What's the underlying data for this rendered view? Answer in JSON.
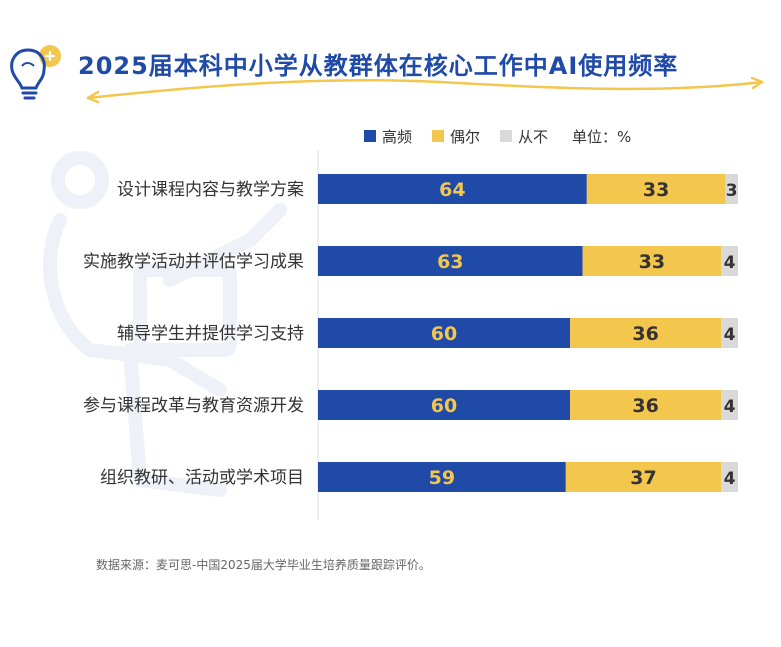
{
  "title": "2025届本科中小学从教群体在核心工作中AI使用频率",
  "legend": {
    "unit_label": "单位：%"
  },
  "colors": {
    "high": "#1f4aa8",
    "occasional": "#f3c64d",
    "never": "#d9d9d9",
    "title": "#1f4aa8",
    "accent": "#f3c64d"
  },
  "source": "数据来源：麦可思-中国2025届大学毕业生培养质量跟踪评价。",
  "chart_data": {
    "type": "bar",
    "stacked": true,
    "orientation": "horizontal",
    "categories": [
      "设计课程内容与教学方案",
      "实施教学活动并评估学习成果",
      "辅导学生并提供学习支持",
      "参与课程改革与教育资源开发",
      "组织教研、活动或学术项目"
    ],
    "series": [
      {
        "name": "高频",
        "values": [
          64,
          63,
          60,
          60,
          59
        ]
      },
      {
        "name": "偶尔",
        "values": [
          33,
          33,
          36,
          36,
          37
        ]
      },
      {
        "name": "从不",
        "values": [
          3,
          4,
          4,
          4,
          4
        ]
      }
    ],
    "xlim": [
      0,
      100
    ],
    "legend_position": "top",
    "grid": false
  }
}
